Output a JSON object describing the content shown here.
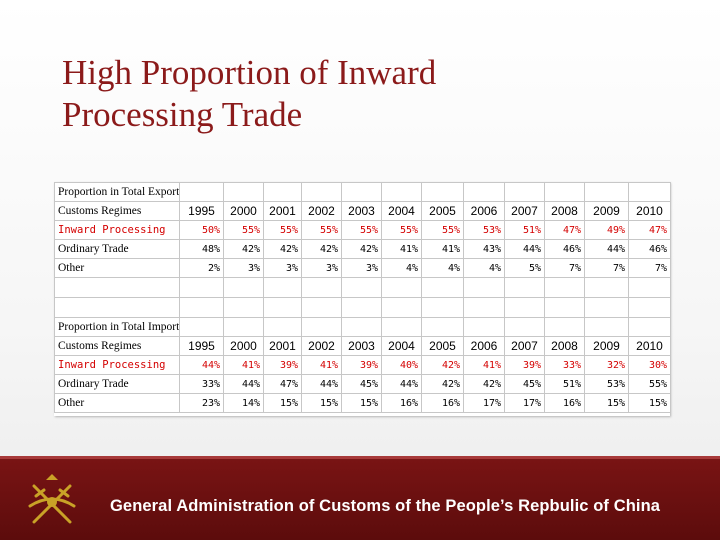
{
  "slide": {
    "title_line1": "High Proportion of Inward",
    "title_line2": "Processing Trade",
    "footer": "General Administration of Customs of the People’s Repbulic of China"
  },
  "export_table": {
    "heading": "Proportion in Total Export",
    "regimes_label": "Customs Regimes",
    "years": [
      "1995",
      "2000",
      "2001",
      "2002",
      "2003",
      "2004",
      "2005",
      "2006",
      "2007",
      "2008",
      "2009",
      "2010"
    ],
    "rows": [
      {
        "label": "Inward Processing",
        "values": [
          "50%",
          "55%",
          "55%",
          "55%",
          "55%",
          "55%",
          "55%",
          "53%",
          "51%",
          "47%",
          "49%",
          "47%"
        ]
      },
      {
        "label": "Ordinary Trade",
        "values": [
          "48%",
          "42%",
          "42%",
          "42%",
          "42%",
          "41%",
          "41%",
          "43%",
          "44%",
          "46%",
          "44%",
          "46%"
        ]
      },
      {
        "label": "Other",
        "values": [
          "2%",
          "3%",
          "3%",
          "3%",
          "3%",
          "4%",
          "4%",
          "4%",
          "5%",
          "7%",
          "7%",
          "7%"
        ]
      }
    ]
  },
  "import_table": {
    "heading": "Proportion in Total Import",
    "regimes_label": "Customs Regimes",
    "years": [
      "1995",
      "2000",
      "2001",
      "2002",
      "2003",
      "2004",
      "2005",
      "2006",
      "2007",
      "2008",
      "2009",
      "2010"
    ],
    "rows": [
      {
        "label": "Inward Processing",
        "values": [
          "44%",
          "41%",
          "39%",
          "41%",
          "39%",
          "40%",
          "42%",
          "41%",
          "39%",
          "33%",
          "32%",
          "30%"
        ]
      },
      {
        "label": "Ordinary Trade",
        "values": [
          "33%",
          "44%",
          "47%",
          "44%",
          "45%",
          "44%",
          "42%",
          "42%",
          "45%",
          "51%",
          "53%",
          "55%"
        ]
      },
      {
        "label": "Other",
        "values": [
          "23%",
          "14%",
          "15%",
          "15%",
          "15%",
          "16%",
          "16%",
          "17%",
          "17%",
          "16%",
          "15%",
          "15%"
        ]
      }
    ]
  },
  "colors": {
    "title": "#8b1a1a",
    "highlight": "#d40000",
    "footer_bg": "#6e1010"
  },
  "icons": {
    "emblem": "customs-emblem-icon"
  }
}
